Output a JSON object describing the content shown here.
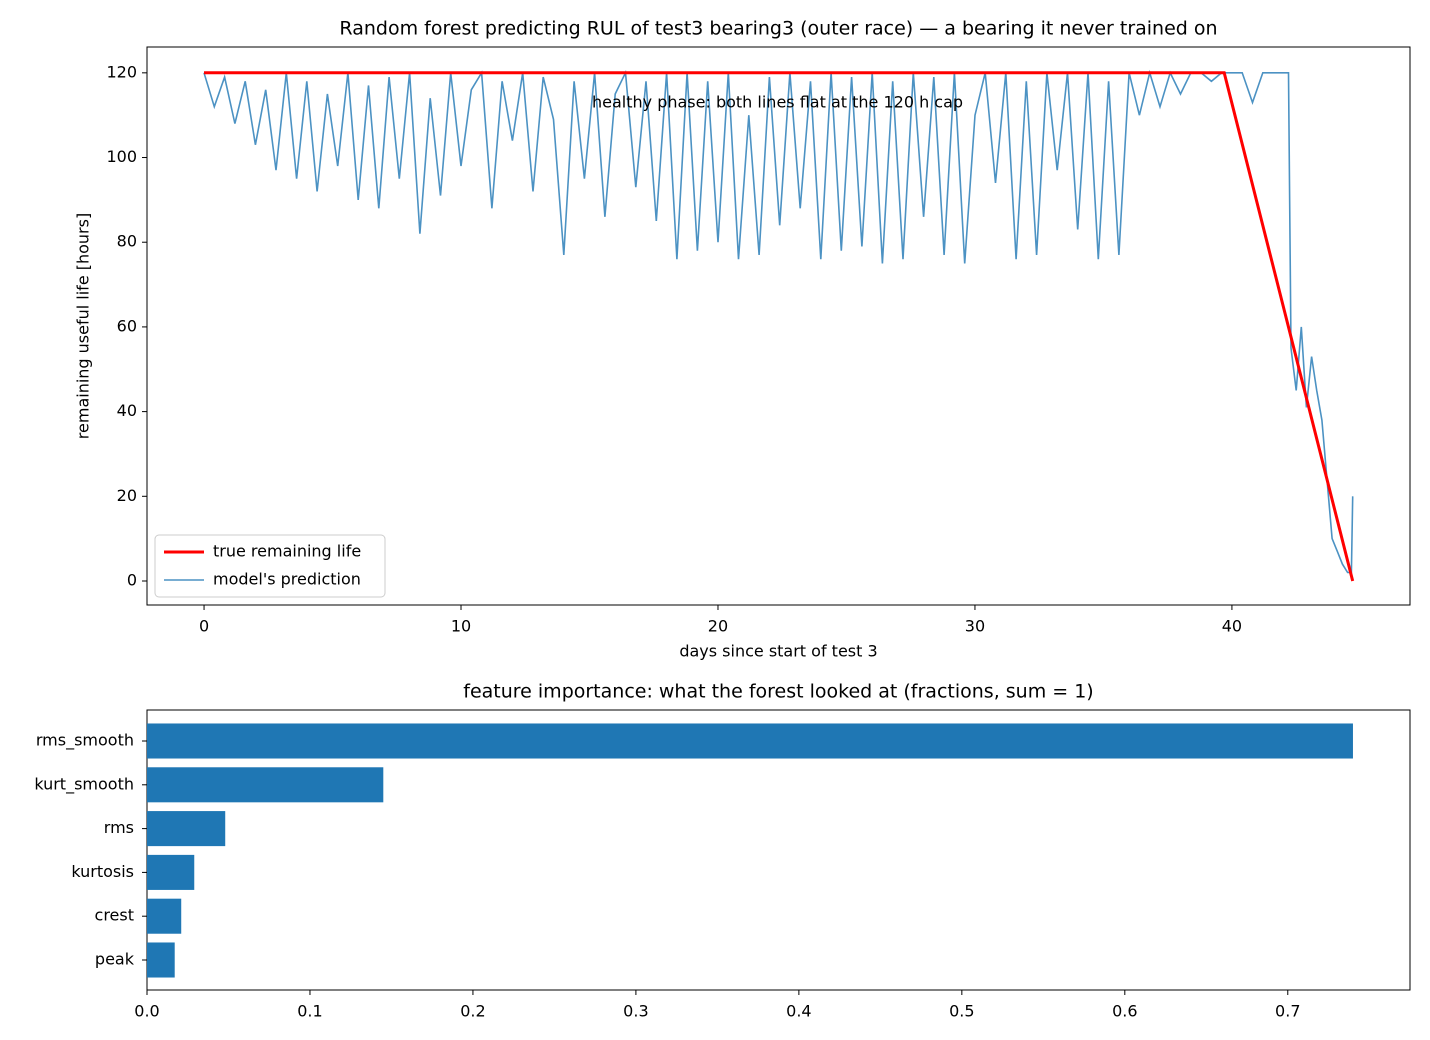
{
  "chart_data": [
    {
      "type": "line",
      "title": "Random forest predicting RUL of test3 bearing3 (outer race) — a bearing it never trained on",
      "xlabel": "days since start of test 3",
      "ylabel": "remaining useful life [hours]",
      "annotation": "healthy phase: both lines flat at the 120 h cap",
      "xlim": [
        -2.22,
        46.93
      ],
      "ylim": [
        -5.67,
        126.1
      ],
      "xticks": [
        0,
        10,
        20,
        30,
        40
      ],
      "yticks": [
        0,
        20,
        40,
        60,
        80,
        100,
        120
      ],
      "grid": false,
      "legend": "lower left",
      "series": [
        {
          "name": "true remaining life",
          "color": "#ff0000",
          "x": [
            0,
            39.7,
            44.7
          ],
          "values": [
            120,
            120,
            0
          ]
        },
        {
          "name": "model's prediction",
          "color": "#1f77b4",
          "x": [
            0,
            0.4,
            0.8,
            1.2,
            1.6,
            2.0,
            2.4,
            2.8,
            3.2,
            3.6,
            4.0,
            4.4,
            4.8,
            5.2,
            5.6,
            6.0,
            6.4,
            6.8,
            7.2,
            7.6,
            8.0,
            8.4,
            8.8,
            9.2,
            9.6,
            10.0,
            10.4,
            10.8,
            11.2,
            11.6,
            12.0,
            12.4,
            12.8,
            13.2,
            13.6,
            14.0,
            14.4,
            14.8,
            15.2,
            15.6,
            16.0,
            16.4,
            16.8,
            17.2,
            17.6,
            18.0,
            18.4,
            18.8,
            19.2,
            19.6,
            20.0,
            20.4,
            20.8,
            21.2,
            21.6,
            22.0,
            22.4,
            22.8,
            23.2,
            23.6,
            24.0,
            24.4,
            24.8,
            25.2,
            25.6,
            26.0,
            26.4,
            26.8,
            27.2,
            27.6,
            28.0,
            28.4,
            28.8,
            29.2,
            29.6,
            30.0,
            30.4,
            30.8,
            31.2,
            31.6,
            32.0,
            32.4,
            32.8,
            33.2,
            33.6,
            34.0,
            34.4,
            34.8,
            35.2,
            35.6,
            36.0,
            36.4,
            36.8,
            37.2,
            37.6,
            38.0,
            38.4,
            38.8,
            39.2,
            39.6,
            40.0,
            40.4,
            40.8,
            41.2,
            41.6,
            42.0,
            42.2,
            42.3,
            42.5,
            42.7,
            42.9,
            43.1,
            43.3,
            43.5,
            43.7,
            43.9,
            44.1,
            44.3,
            44.5,
            44.65,
            44.7
          ],
          "values": [
            120,
            112,
            119,
            108,
            118,
            103,
            116,
            97,
            120,
            95,
            118,
            92,
            115,
            98,
            120,
            90,
            117,
            88,
            119,
            95,
            120,
            82,
            114,
            91,
            120,
            98,
            116,
            120,
            88,
            118,
            104,
            120,
            92,
            119,
            109,
            77,
            118,
            95,
            120,
            86,
            115,
            120,
            93,
            118,
            85,
            120,
            76,
            120,
            78,
            118,
            80,
            120,
            76,
            110,
            77,
            119,
            84,
            120,
            88,
            118,
            76,
            120,
            78,
            119,
            79,
            120,
            75,
            118,
            76,
            120,
            86,
            119,
            77,
            120,
            75,
            110,
            120,
            94,
            120,
            76,
            118,
            77,
            120,
            97,
            120,
            83,
            120,
            76,
            118,
            77,
            120,
            110,
            120,
            112,
            120,
            115,
            120,
            120,
            118,
            120,
            120,
            120,
            113,
            120,
            120,
            120,
            120,
            55,
            45,
            60,
            41,
            53,
            45,
            38,
            24,
            10,
            7,
            4,
            2,
            2,
            20
          ]
        }
      ]
    },
    {
      "type": "barh",
      "title": "feature importance: what the forest looked at (fractions, sum = 1)",
      "categories": [
        "rms_smooth",
        "kurt_smooth",
        "rms",
        "kurtosis",
        "crest",
        "peak"
      ],
      "values": [
        0.74,
        0.145,
        0.048,
        0.029,
        0.021,
        0.017
      ],
      "color": "#1f77b4",
      "xlim": [
        0,
        0.775
      ],
      "xticks": [
        {
          "value": 0,
          "label": "0.0"
        },
        0.1,
        0.2,
        0.3,
        0.4,
        0.5,
        0.6,
        0.7
      ],
      "grid": false
    }
  ]
}
